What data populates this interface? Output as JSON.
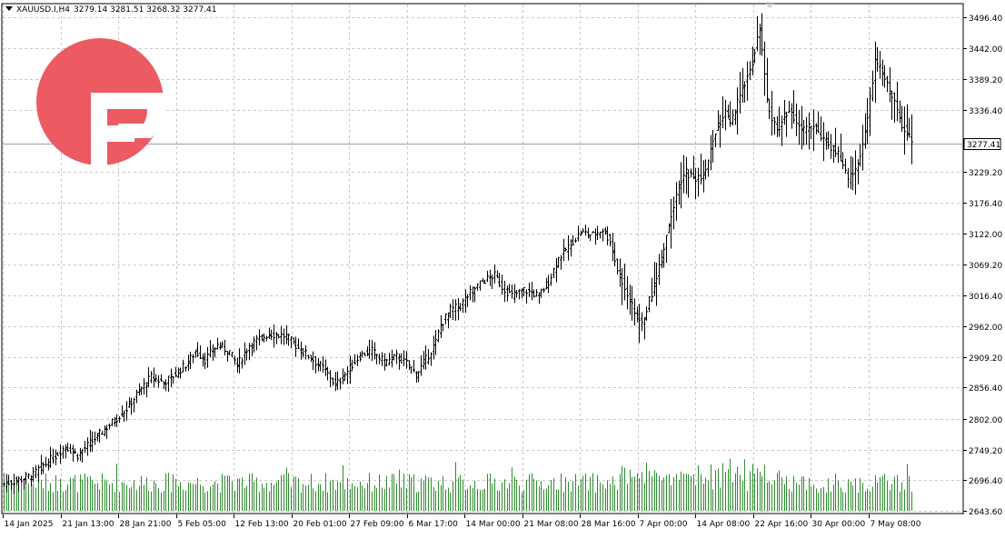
{
  "header": {
    "symbol": "XAUUSD.I,H4",
    "open": "3279.14",
    "high": "3281.51",
    "low": "3268.32",
    "close": "3277.41"
  },
  "colors": {
    "bars": "#000000",
    "volume": "#2e8b2e",
    "grid": "#c8c8c8",
    "current_price_line": "#a0a0a0",
    "logo": "#ec5a62"
  },
  "icons": {
    "logo": "brand-logo-icon",
    "menu": "dropdown-triangle-icon"
  },
  "chart_data": {
    "type": "ohlc",
    "ylim": [
      2643.6,
      3518
    ],
    "yticks": [
      "3496.40",
      "3442.00",
      "3389.20",
      "3336.40",
      "3229.20",
      "3176.40",
      "3122.00",
      "3069.20",
      "3016.40",
      "2962.00",
      "2909.20",
      "2856.40",
      "2802.00",
      "2749.20",
      "2696.40",
      "2643.60"
    ],
    "current_price": "3277.41",
    "x_labels": [
      "14 Jan 2025",
      "21 Jan 13:00",
      "28 Jan 21:00",
      "5 Feb 05:00",
      "12 Feb 13:00",
      "20 Feb 01:00",
      "27 Feb 09:00",
      "6 Mar 17:00",
      "14 Mar 00:00",
      "21 Mar 08:00",
      "28 Mar 16:00",
      "7 Apr 00:00",
      "14 Apr 08:00",
      "22 Apr 16:00",
      "30 Apr 00:00",
      "7 May 08:00"
    ],
    "close_path": [
      [
        0,
        2690
      ],
      [
        12,
        2705
      ],
      [
        14,
        2715
      ],
      [
        20,
        2735
      ],
      [
        25,
        2755
      ],
      [
        30,
        2740
      ],
      [
        35,
        2760
      ],
      [
        40,
        2780
      ],
      [
        45,
        2800
      ],
      [
        50,
        2820
      ],
      [
        55,
        2850
      ],
      [
        60,
        2875
      ],
      [
        65,
        2865
      ],
      [
        70,
        2880
      ],
      [
        75,
        2900
      ],
      [
        78,
        2920
      ],
      [
        82,
        2905
      ],
      [
        87,
        2930
      ],
      [
        92,
        2918
      ],
      [
        95,
        2895
      ],
      [
        100,
        2930
      ],
      [
        108,
        2950
      ],
      [
        115,
        2945
      ],
      [
        120,
        2925
      ],
      [
        125,
        2908
      ],
      [
        130,
        2890
      ],
      [
        133,
        2875
      ],
      [
        135,
        2860
      ],
      [
        140,
        2885
      ],
      [
        145,
        2912
      ],
      [
        150,
        2920
      ],
      [
        155,
        2900
      ],
      [
        160,
        2910
      ],
      [
        165,
        2895
      ],
      [
        168,
        2880
      ],
      [
        172,
        2905
      ],
      [
        176,
        2935
      ],
      [
        178,
        2965
      ],
      [
        182,
        2990
      ],
      [
        186,
        2998
      ],
      [
        190,
        3020
      ],
      [
        195,
        3040
      ],
      [
        200,
        3050
      ],
      [
        203,
        3030
      ],
      [
        207,
        3015
      ],
      [
        212,
        3025
      ],
      [
        218,
        3015
      ],
      [
        222,
        3040
      ],
      [
        226,
        3080
      ],
      [
        230,
        3100
      ],
      [
        235,
        3125
      ],
      [
        240,
        3120
      ],
      [
        244,
        3130
      ],
      [
        247,
        3110
      ],
      [
        250,
        3060
      ],
      [
        254,
        3020
      ],
      [
        257,
        2985
      ],
      [
        260,
        2965
      ],
      [
        264,
        3020
      ],
      [
        268,
        3080
      ],
      [
        271,
        3140
      ],
      [
        274,
        3190
      ],
      [
        278,
        3230
      ],
      [
        282,
        3215
      ],
      [
        286,
        3230
      ],
      [
        290,
        3300
      ],
      [
        294,
        3330
      ],
      [
        296,
        3310
      ],
      [
        300,
        3360
      ],
      [
        305,
        3420
      ],
      [
        308,
        3480
      ],
      [
        311,
        3350
      ],
      [
        315,
        3300
      ],
      [
        320,
        3340
      ],
      [
        325,
        3300
      ],
      [
        330,
        3310
      ],
      [
        335,
        3280
      ],
      [
        340,
        3260
      ],
      [
        344,
        3215
      ],
      [
        348,
        3240
      ],
      [
        352,
        3320
      ],
      [
        355,
        3420
      ],
      [
        358,
        3400
      ],
      [
        362,
        3360
      ],
      [
        366,
        3310
      ],
      [
        368,
        3300
      ],
      [
        370,
        3280
      ]
    ],
    "volume_range": [
      0,
      100
    ]
  }
}
